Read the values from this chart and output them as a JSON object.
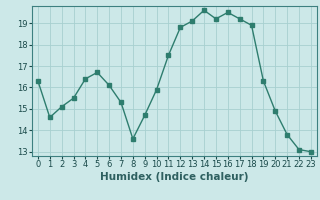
{
  "xlabel": "Humidex (Indice chaleur)",
  "x": [
    0,
    1,
    2,
    3,
    4,
    5,
    6,
    7,
    8,
    9,
    10,
    11,
    12,
    13,
    14,
    15,
    16,
    17,
    18,
    19,
    20,
    21,
    22,
    23
  ],
  "y": [
    16.3,
    14.6,
    15.1,
    15.5,
    16.4,
    16.7,
    16.1,
    15.3,
    13.6,
    14.7,
    15.9,
    17.5,
    18.8,
    19.1,
    19.6,
    19.2,
    19.5,
    19.2,
    18.9,
    16.3,
    14.9,
    13.8,
    13.1,
    13.0
  ],
  "line_color": "#2e7d6e",
  "marker": "s",
  "marker_size": 2.5,
  "bg_color": "#cce8e8",
  "grid_color": "#a8d0d0",
  "ylim": [
    12.8,
    19.8
  ],
  "yticks": [
    13,
    14,
    15,
    16,
    17,
    18,
    19
  ],
  "xlim": [
    -0.5,
    23.5
  ],
  "tick_fontsize": 6,
  "label_fontsize": 7.5
}
